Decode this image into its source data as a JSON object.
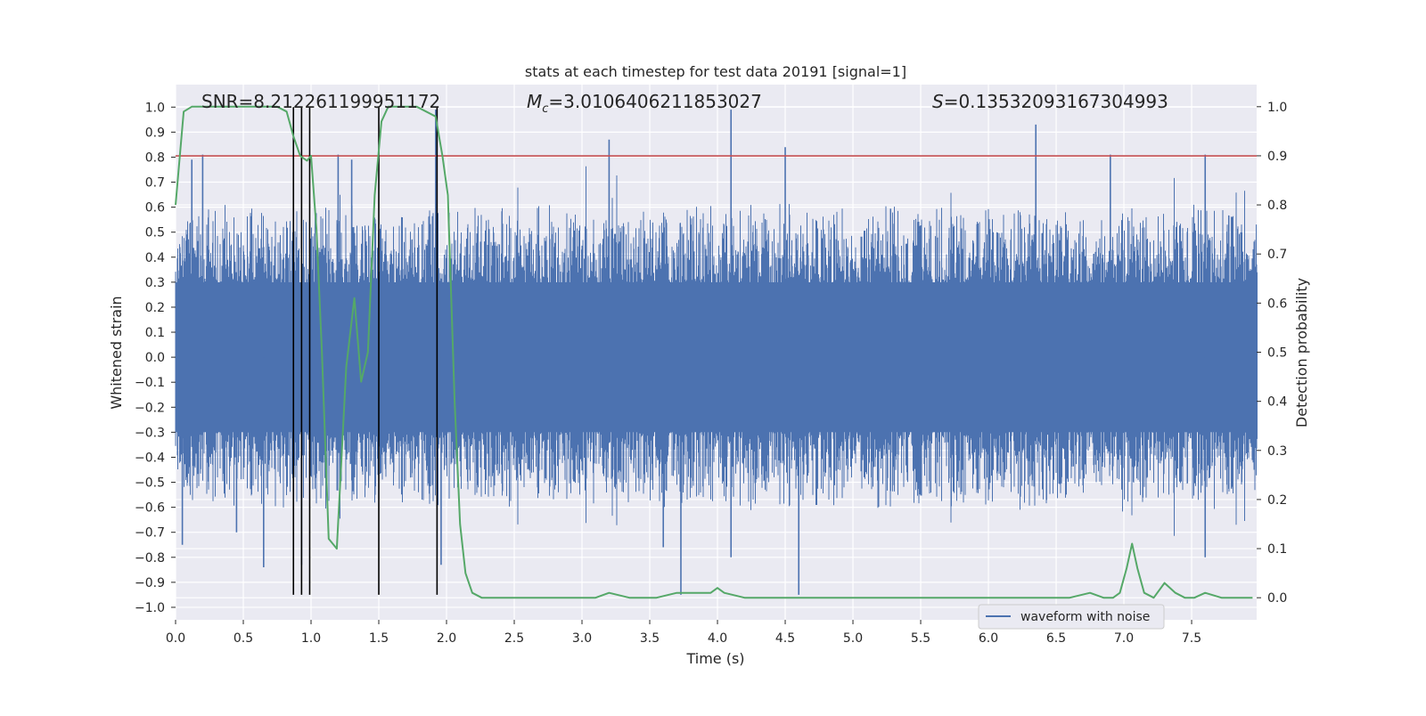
{
  "chart_data": {
    "type": "line",
    "title": "stats at each timestep for test data 20191 [signal=1]",
    "xlabel": "Time (s)",
    "ylabel": "Whitened strain",
    "y2label": "Detection probability",
    "xlim": [
      0.0,
      7.98
    ],
    "ylim": [
      -1.05,
      1.09
    ],
    "y2lim": [
      -0.045,
      1.045
    ],
    "xticks": [
      "0.0",
      "0.5",
      "1.0",
      "1.5",
      "2.0",
      "2.5",
      "3.0",
      "3.5",
      "4.0",
      "4.5",
      "5.0",
      "5.5",
      "6.0",
      "6.5",
      "7.0",
      "7.5"
    ],
    "yticks": [
      "1.0",
      "0.9",
      "0.8",
      "0.7",
      "0.6",
      "0.5",
      "0.4",
      "0.3",
      "0.2",
      "0.1",
      "0.0",
      "−0.1",
      "−0.2",
      "−0.3",
      "−0.4",
      "−0.5",
      "−0.6",
      "−0.7",
      "−0.8",
      "−0.9",
      "−1.0"
    ],
    "y2ticks": [
      "1.0",
      "0.9",
      "0.8",
      "0.7",
      "0.6",
      "0.5",
      "0.4",
      "0.3",
      "0.2",
      "0.1",
      "0.0"
    ],
    "grid": true,
    "legend": {
      "placement": "lower-right",
      "entries": [
        "waveform with noise"
      ]
    },
    "annotations": {
      "snr": "SNR=8.212261199951172",
      "mc_symbol": "M",
      "mc_sub": "c",
      "mc_value": "=3.0106406211853027",
      "s_symbol": "S",
      "s_value": "=0.13532093167304993"
    },
    "colors": {
      "waveform": "#4c72b0",
      "probability": "#55a868",
      "threshold": "#c44e52",
      "markers": "#000000",
      "axes_bg": "#eaeaf2"
    },
    "series": [
      {
        "name": "waveform with noise",
        "axis": "left",
        "color": "#4c72b0",
        "description": "dense noisy whitened strain, core band about ±0.3 with spikes",
        "envelope_core": 0.3,
        "spikes": [
          {
            "x": 0.12,
            "y": 0.79
          },
          {
            "x": 0.2,
            "y": 0.81
          },
          {
            "x": 0.05,
            "y": -0.75
          },
          {
            "x": 0.45,
            "y": -0.7
          },
          {
            "x": 0.65,
            "y": -0.84
          },
          {
            "x": 0.93,
            "y": -0.83
          },
          {
            "x": 1.2,
            "y": 0.81
          },
          {
            "x": 1.3,
            "y": 0.79
          },
          {
            "x": 1.92,
            "y": 0.99
          },
          {
            "x": 1.96,
            "y": -0.83
          },
          {
            "x": 3.2,
            "y": 0.87
          },
          {
            "x": 3.6,
            "y": -0.76
          },
          {
            "x": 3.73,
            "y": -0.95
          },
          {
            "x": 4.1,
            "y": 0.99
          },
          {
            "x": 4.1,
            "y": -0.8
          },
          {
            "x": 4.5,
            "y": 0.84
          },
          {
            "x": 4.6,
            "y": -0.95
          },
          {
            "x": 6.35,
            "y": 0.93
          },
          {
            "x": 6.9,
            "y": 0.81
          },
          {
            "x": 7.6,
            "y": 0.81
          },
          {
            "x": 7.6,
            "y": -0.8
          }
        ]
      },
      {
        "name": "",
        "axis": "right",
        "color": "#55a868",
        "x": [
          0.0,
          0.06,
          0.12,
          0.2,
          0.3,
          0.5,
          0.65,
          0.75,
          0.82,
          0.87,
          0.92,
          0.97,
          1.0,
          1.04,
          1.08,
          1.13,
          1.19,
          1.26,
          1.32,
          1.37,
          1.42,
          1.47,
          1.52,
          1.57,
          1.63,
          1.7,
          1.78,
          1.85,
          1.92,
          1.97,
          2.01,
          2.06,
          2.1,
          2.14,
          2.19,
          2.26,
          2.35,
          2.5,
          2.7,
          2.9,
          3.1,
          3.2,
          3.35,
          3.55,
          3.7,
          3.75,
          3.85,
          3.95,
          4.0,
          4.05,
          4.2,
          4.4,
          4.6,
          5.0,
          5.4,
          5.8,
          6.2,
          6.6,
          6.75,
          6.85,
          6.92,
          6.97,
          7.02,
          7.06,
          7.1,
          7.15,
          7.22,
          7.3,
          7.38,
          7.45,
          7.52,
          7.6,
          7.72,
          7.85,
          7.95
        ],
        "values": [
          0.8,
          0.99,
          1.0,
          1.0,
          1.0,
          1.0,
          1.0,
          1.0,
          0.99,
          0.94,
          0.9,
          0.89,
          0.9,
          0.75,
          0.5,
          0.12,
          0.1,
          0.47,
          0.61,
          0.44,
          0.5,
          0.82,
          0.97,
          1.0,
          1.0,
          1.0,
          1.0,
          0.99,
          0.98,
          0.9,
          0.82,
          0.4,
          0.15,
          0.05,
          0.01,
          0.0,
          0.0,
          0.0,
          0.0,
          0.0,
          0.0,
          0.01,
          0.0,
          0.0,
          0.01,
          0.01,
          0.01,
          0.01,
          0.02,
          0.01,
          0.0,
          0.0,
          0.0,
          0.0,
          0.0,
          0.0,
          0.0,
          0.0,
          0.01,
          0.0,
          0.0,
          0.01,
          0.06,
          0.11,
          0.06,
          0.01,
          0.0,
          0.03,
          0.01,
          0.0,
          0.0,
          0.01,
          0.0,
          0.0,
          0.0
        ]
      },
      {
        "name": "",
        "axis": "left",
        "color": "#c44e52",
        "type": "hline",
        "y": 0.805
      }
    ],
    "vlines": [
      0.87,
      0.93,
      0.99,
      1.5,
      1.93
    ],
    "vlines_y_range": [
      -0.95,
      1.0
    ]
  }
}
